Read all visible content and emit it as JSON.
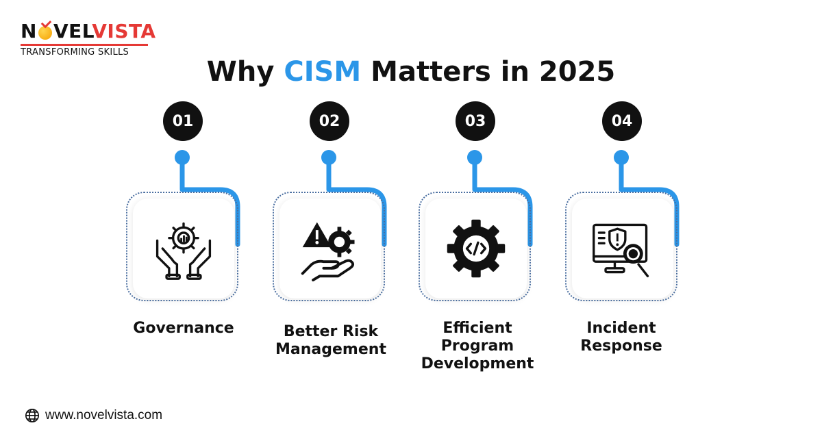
{
  "logo": {
    "part1": "N",
    "part2": "VEL",
    "part3": "VISTA",
    "tagline": "TRANSFORMING SKILLS"
  },
  "title": {
    "before": "Why ",
    "highlight": "CISM",
    "after": " Matters in 2025"
  },
  "items": [
    {
      "number": "01",
      "label": "Governance",
      "icon": "hands-gear-chart-icon"
    },
    {
      "number": "02",
      "label": "Better Risk\nManagement",
      "icon": "warning-gear-hand-icon"
    },
    {
      "number": "03",
      "label": "Efficient\nProgram\nDevelopment",
      "icon": "code-gear-icon"
    },
    {
      "number": "04",
      "label": "Incident\nResponse",
      "icon": "monitor-shield-magnifier-icon"
    }
  ],
  "footer": {
    "website": "www.novelvista.com",
    "icon": "globe-icon"
  },
  "colors": {
    "accent": "#2b96e8",
    "brand_red": "#e53935",
    "dark": "#111111",
    "dotted": "#4a6ea0"
  }
}
